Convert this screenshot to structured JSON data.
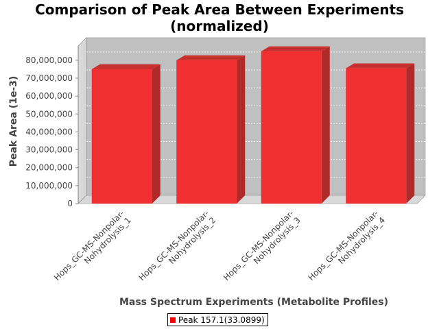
{
  "chart_data": {
    "type": "bar",
    "title_line1": "Comparison of Peak Area Between Experiments",
    "title_line2": "(normalized)",
    "xlabel": "Mass Spectrum Experiments (Metabolite Profiles)",
    "ylabel": "Peak Area (1e-3)",
    "categories": [
      [
        "Hops_GC-MS-Nonpolar-",
        "Nohydrolysis_1"
      ],
      [
        "Hops_GC-MS-Nonpolar-",
        "Nohydrolysis_2"
      ],
      [
        "Hops_GC-MS-Nonpolar-",
        "Nohydrolysis_3"
      ],
      [
        "Hops_GC-MS-Nonpolar-",
        "Nohydrolysis_4"
      ]
    ],
    "series": [
      {
        "name": "Peak 157.1(33.0899)",
        "values": [
          75000000,
          80000000,
          85000000,
          75500000
        ]
      }
    ],
    "ylim": [
      0,
      88000000
    ],
    "yticks": [
      0,
      10000000,
      20000000,
      30000000,
      40000000,
      50000000,
      60000000,
      70000000,
      80000000
    ],
    "ytick_labels": [
      "0",
      "10,000,000",
      "20,000,000",
      "30,000,000",
      "40,000,000",
      "50,000,000",
      "60,000,000",
      "70,000,000",
      "80,000,000"
    ],
    "grid": true,
    "legend_position": "bottom-center",
    "colors": {
      "bar_face": "#f03030",
      "bar_side": "#b02a2a",
      "bar_top": "#c83030",
      "plot_bg": "#c0c0c0"
    }
  }
}
